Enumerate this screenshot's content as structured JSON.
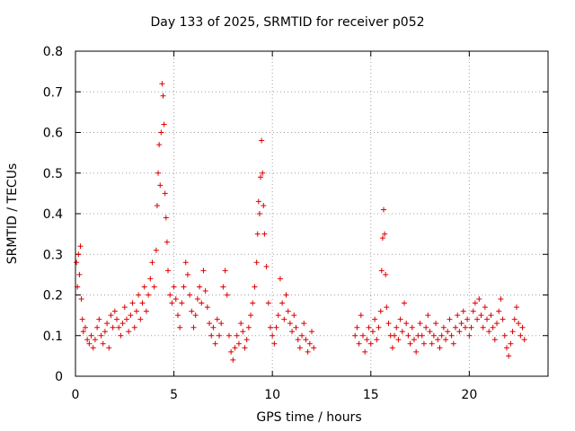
{
  "chart_data": {
    "type": "scatter",
    "title": "Day 133 of 2025, SRMTID for receiver p052",
    "xlabel": "GPS time / hours",
    "ylabel": "SRMTID / TECUs",
    "xlim": [
      0,
      24
    ],
    "ylim": [
      0,
      0.8
    ],
    "xticks": [
      0,
      5,
      10,
      15,
      20
    ],
    "yticks": [
      0,
      0.1,
      0.2,
      0.3,
      0.4,
      0.5,
      0.6,
      0.7,
      0.8
    ],
    "grid": true,
    "marker": "+",
    "color": "#dd0000",
    "series": [
      {
        "name": "SRMTID",
        "points": [
          [
            0.05,
            0.28
          ],
          [
            0.1,
            0.22
          ],
          [
            0.15,
            0.3
          ],
          [
            0.2,
            0.25
          ],
          [
            0.25,
            0.32
          ],
          [
            0.3,
            0.19
          ],
          [
            0.35,
            0.14
          ],
          [
            0.4,
            0.11
          ],
          [
            0.5,
            0.12
          ],
          [
            0.6,
            0.09
          ],
          [
            0.7,
            0.08
          ],
          [
            0.8,
            0.1
          ],
          [
            0.9,
            0.07
          ],
          [
            1.0,
            0.09
          ],
          [
            1.1,
            0.12
          ],
          [
            1.2,
            0.14
          ],
          [
            1.3,
            0.1
          ],
          [
            1.4,
            0.08
          ],
          [
            1.5,
            0.11
          ],
          [
            1.6,
            0.13
          ],
          [
            1.7,
            0.07
          ],
          [
            1.8,
            0.15
          ],
          [
            1.9,
            0.12
          ],
          [
            2.0,
            0.16
          ],
          [
            2.1,
            0.14
          ],
          [
            2.2,
            0.12
          ],
          [
            2.3,
            0.1
          ],
          [
            2.4,
            0.13
          ],
          [
            2.5,
            0.17
          ],
          [
            2.6,
            0.14
          ],
          [
            2.7,
            0.11
          ],
          [
            2.8,
            0.15
          ],
          [
            2.9,
            0.18
          ],
          [
            3.0,
            0.12
          ],
          [
            3.1,
            0.16
          ],
          [
            3.2,
            0.2
          ],
          [
            3.3,
            0.14
          ],
          [
            3.4,
            0.18
          ],
          [
            3.5,
            0.22
          ],
          [
            3.6,
            0.16
          ],
          [
            3.7,
            0.2
          ],
          [
            3.8,
            0.24
          ],
          [
            3.9,
            0.28
          ],
          [
            4.0,
            0.22
          ],
          [
            4.1,
            0.31
          ],
          [
            4.15,
            0.42
          ],
          [
            4.2,
            0.5
          ],
          [
            4.25,
            0.57
          ],
          [
            4.3,
            0.47
          ],
          [
            4.35,
            0.6
          ],
          [
            4.4,
            0.72
          ],
          [
            4.45,
            0.69
          ],
          [
            4.5,
            0.62
          ],
          [
            4.55,
            0.45
          ],
          [
            4.6,
            0.39
          ],
          [
            4.65,
            0.33
          ],
          [
            4.7,
            0.26
          ],
          [
            4.8,
            0.2
          ],
          [
            4.9,
            0.18
          ],
          [
            5.0,
            0.22
          ],
          [
            5.1,
            0.19
          ],
          [
            5.2,
            0.15
          ],
          [
            5.3,
            0.12
          ],
          [
            5.4,
            0.18
          ],
          [
            5.5,
            0.22
          ],
          [
            5.6,
            0.28
          ],
          [
            5.7,
            0.25
          ],
          [
            5.8,
            0.2
          ],
          [
            5.9,
            0.16
          ],
          [
            6.0,
            0.12
          ],
          [
            6.1,
            0.15
          ],
          [
            6.2,
            0.19
          ],
          [
            6.3,
            0.22
          ],
          [
            6.4,
            0.18
          ],
          [
            6.5,
            0.26
          ],
          [
            6.6,
            0.21
          ],
          [
            6.7,
            0.17
          ],
          [
            6.8,
            0.13
          ],
          [
            6.9,
            0.1
          ],
          [
            7.0,
            0.12
          ],
          [
            7.1,
            0.08
          ],
          [
            7.2,
            0.14
          ],
          [
            7.3,
            0.1
          ],
          [
            7.4,
            0.13
          ],
          [
            7.5,
            0.22
          ],
          [
            7.6,
            0.26
          ],
          [
            7.7,
            0.2
          ],
          [
            7.8,
            0.1
          ],
          [
            7.9,
            0.06
          ],
          [
            8.0,
            0.04
          ],
          [
            8.1,
            0.07
          ],
          [
            8.2,
            0.1
          ],
          [
            8.3,
            0.08
          ],
          [
            8.4,
            0.13
          ],
          [
            8.5,
            0.11
          ],
          [
            8.6,
            0.07
          ],
          [
            8.7,
            0.09
          ],
          [
            8.8,
            0.12
          ],
          [
            8.9,
            0.15
          ],
          [
            9.0,
            0.18
          ],
          [
            9.1,
            0.22
          ],
          [
            9.2,
            0.28
          ],
          [
            9.25,
            0.35
          ],
          [
            9.3,
            0.43
          ],
          [
            9.35,
            0.4
          ],
          [
            9.4,
            0.49
          ],
          [
            9.45,
            0.58
          ],
          [
            9.5,
            0.5
          ],
          [
            9.55,
            0.42
          ],
          [
            9.6,
            0.35
          ],
          [
            9.7,
            0.27
          ],
          [
            9.8,
            0.18
          ],
          [
            9.9,
            0.12
          ],
          [
            10.0,
            0.1
          ],
          [
            10.1,
            0.08
          ],
          [
            10.2,
            0.12
          ],
          [
            10.3,
            0.15
          ],
          [
            10.4,
            0.24
          ],
          [
            10.5,
            0.18
          ],
          [
            10.6,
            0.14
          ],
          [
            10.7,
            0.2
          ],
          [
            10.8,
            0.16
          ],
          [
            10.9,
            0.13
          ],
          [
            11.0,
            0.11
          ],
          [
            11.1,
            0.15
          ],
          [
            11.2,
            0.12
          ],
          [
            11.3,
            0.09
          ],
          [
            11.4,
            0.07
          ],
          [
            11.5,
            0.1
          ],
          [
            11.6,
            0.13
          ],
          [
            11.7,
            0.09
          ],
          [
            11.8,
            0.06
          ],
          [
            11.9,
            0.08
          ],
          [
            12.0,
            0.11
          ],
          [
            12.1,
            0.07
          ],
          [
            14.2,
            0.1
          ],
          [
            14.3,
            0.12
          ],
          [
            14.4,
            0.08
          ],
          [
            14.5,
            0.15
          ],
          [
            14.6,
            0.1
          ],
          [
            14.7,
            0.06
          ],
          [
            14.8,
            0.09
          ],
          [
            14.9,
            0.12
          ],
          [
            15.0,
            0.08
          ],
          [
            15.1,
            0.11
          ],
          [
            15.2,
            0.14
          ],
          [
            15.3,
            0.09
          ],
          [
            15.4,
            0.12
          ],
          [
            15.5,
            0.16
          ],
          [
            15.55,
            0.26
          ],
          [
            15.6,
            0.34
          ],
          [
            15.65,
            0.41
          ],
          [
            15.7,
            0.35
          ],
          [
            15.75,
            0.25
          ],
          [
            15.8,
            0.17
          ],
          [
            15.9,
            0.13
          ],
          [
            16.0,
            0.1
          ],
          [
            16.1,
            0.07
          ],
          [
            16.2,
            0.1
          ],
          [
            16.3,
            0.12
          ],
          [
            16.4,
            0.09
          ],
          [
            16.5,
            0.14
          ],
          [
            16.6,
            0.11
          ],
          [
            16.7,
            0.18
          ],
          [
            16.8,
            0.13
          ],
          [
            16.9,
            0.1
          ],
          [
            17.0,
            0.08
          ],
          [
            17.1,
            0.12
          ],
          [
            17.2,
            0.09
          ],
          [
            17.3,
            0.06
          ],
          [
            17.4,
            0.1
          ],
          [
            17.5,
            0.13
          ],
          [
            17.6,
            0.1
          ],
          [
            17.7,
            0.08
          ],
          [
            17.8,
            0.12
          ],
          [
            17.9,
            0.15
          ],
          [
            18.0,
            0.11
          ],
          [
            18.1,
            0.08
          ],
          [
            18.2,
            0.1
          ],
          [
            18.3,
            0.13
          ],
          [
            18.4,
            0.09
          ],
          [
            18.5,
            0.07
          ],
          [
            18.6,
            0.1
          ],
          [
            18.7,
            0.12
          ],
          [
            18.8,
            0.09
          ],
          [
            18.9,
            0.11
          ],
          [
            19.0,
            0.14
          ],
          [
            19.1,
            0.1
          ],
          [
            19.2,
            0.08
          ],
          [
            19.3,
            0.12
          ],
          [
            19.4,
            0.15
          ],
          [
            19.5,
            0.11
          ],
          [
            19.6,
            0.13
          ],
          [
            19.7,
            0.16
          ],
          [
            19.8,
            0.12
          ],
          [
            19.9,
            0.14
          ],
          [
            20.0,
            0.1
          ],
          [
            20.1,
            0.12
          ],
          [
            20.2,
            0.16
          ],
          [
            20.3,
            0.18
          ],
          [
            20.4,
            0.14
          ],
          [
            20.5,
            0.19
          ],
          [
            20.6,
            0.15
          ],
          [
            20.7,
            0.12
          ],
          [
            20.8,
            0.17
          ],
          [
            20.9,
            0.14
          ],
          [
            21.0,
            0.11
          ],
          [
            21.1,
            0.15
          ],
          [
            21.2,
            0.12
          ],
          [
            21.3,
            0.09
          ],
          [
            21.4,
            0.13
          ],
          [
            21.5,
            0.16
          ],
          [
            21.6,
            0.19
          ],
          [
            21.7,
            0.14
          ],
          [
            21.8,
            0.1
          ],
          [
            21.9,
            0.07
          ],
          [
            22.0,
            0.05
          ],
          [
            22.1,
            0.08
          ],
          [
            22.2,
            0.11
          ],
          [
            22.3,
            0.14
          ],
          [
            22.4,
            0.17
          ],
          [
            22.5,
            0.13
          ],
          [
            22.6,
            0.1
          ],
          [
            22.7,
            0.12
          ],
          [
            22.8,
            0.09
          ]
        ]
      }
    ]
  }
}
